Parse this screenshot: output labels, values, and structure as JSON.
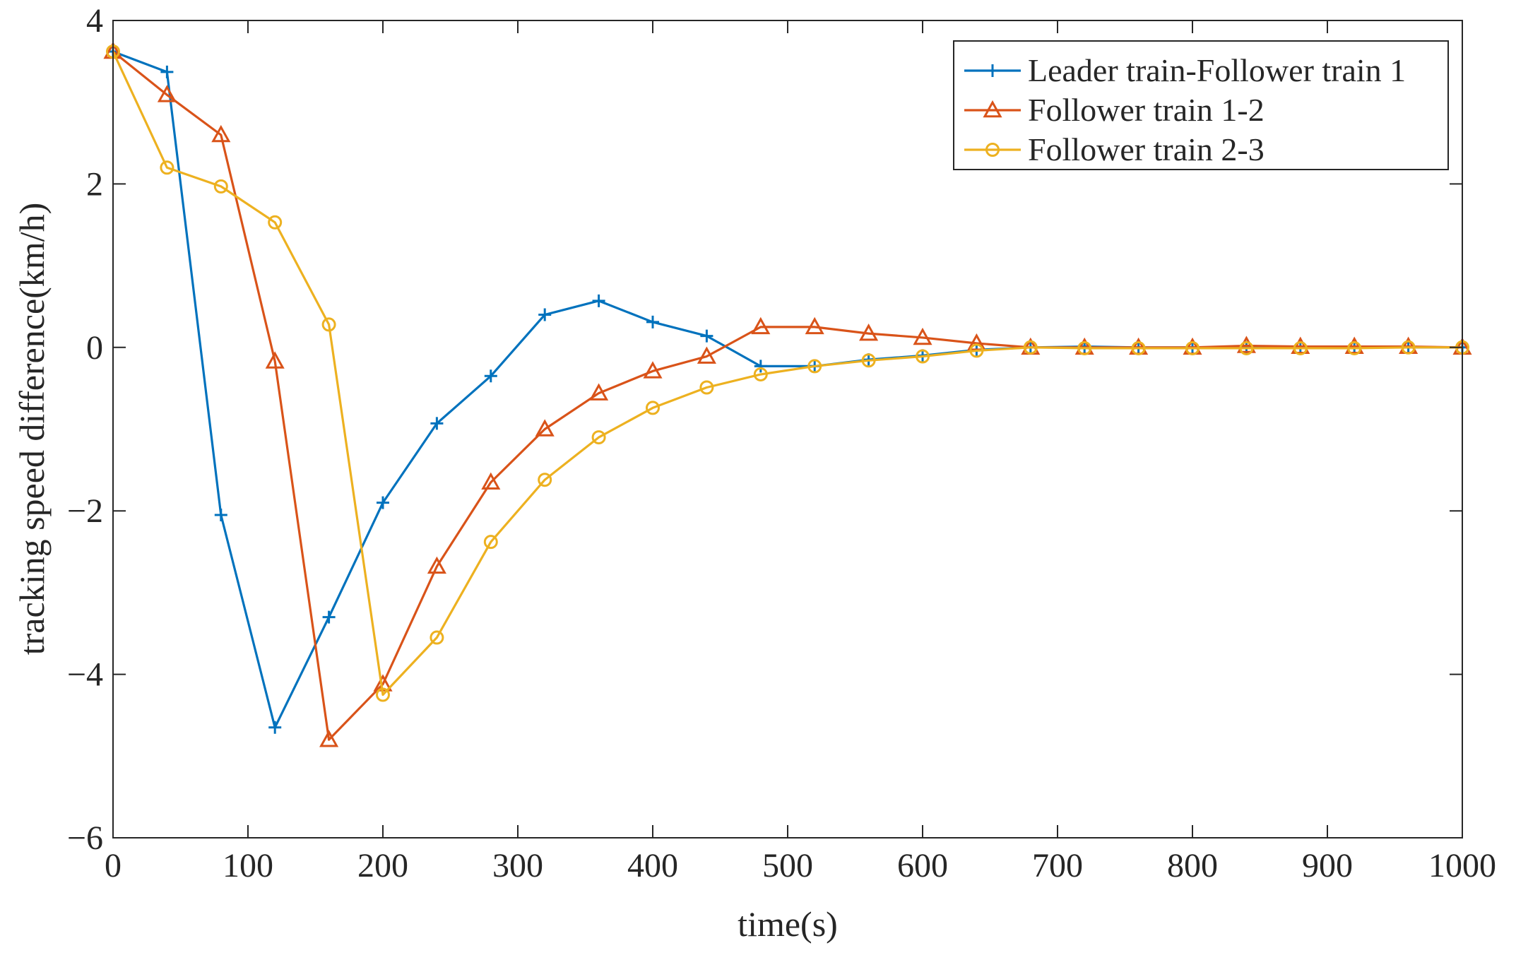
{
  "chart_data": {
    "type": "line",
    "title": "",
    "xlabel": "time(s)",
    "ylabel": "tracking speed difference(km/h)",
    "xlim": [
      0,
      1000
    ],
    "ylim": [
      -6,
      4
    ],
    "xticks": [
      0,
      100,
      200,
      300,
      400,
      500,
      600,
      700,
      800,
      900,
      1000
    ],
    "yticks": [
      -6,
      -4,
      -2,
      0,
      2,
      4
    ],
    "xtick_labels": [
      "0",
      "100",
      "200",
      "300",
      "400",
      "500",
      "600",
      "700",
      "800",
      "900",
      "1000"
    ],
    "ytick_labels": [
      "−6",
      "−4",
      "−2",
      "0",
      "2",
      "4"
    ],
    "grid": false,
    "legend_position": "top-right",
    "x": [
      0,
      40,
      80,
      120,
      160,
      200,
      240,
      280,
      320,
      360,
      400,
      440,
      480,
      520,
      560,
      600,
      640,
      680,
      720,
      760,
      800,
      840,
      880,
      920,
      960,
      1000
    ],
    "series": [
      {
        "name": "Leader train-Follower train 1",
        "color": "#0072BD",
        "marker": "plus",
        "values": [
          3.62,
          3.37,
          -2.05,
          -4.65,
          -3.3,
          -1.9,
          -0.93,
          -0.35,
          0.4,
          0.57,
          0.31,
          0.14,
          -0.23,
          -0.23,
          -0.15,
          -0.1,
          -0.03,
          0.0,
          0.01,
          0.0,
          0.0,
          0.0,
          0.0,
          0.0,
          0.0,
          0.0
        ]
      },
      {
        "name": "Follower train 1-2",
        "color": "#D95319",
        "marker": "triangle",
        "values": [
          3.62,
          3.09,
          2.6,
          -0.17,
          -4.8,
          -4.12,
          -2.68,
          -1.65,
          -1.0,
          -0.56,
          -0.29,
          -0.11,
          0.25,
          0.25,
          0.17,
          0.12,
          0.05,
          0.0,
          0.0,
          0.0,
          0.0,
          0.02,
          0.01,
          0.01,
          0.01,
          0.0
        ]
      },
      {
        "name": "Follower train 2-3",
        "color": "#EDB120",
        "marker": "circle",
        "values": [
          3.62,
          2.2,
          1.97,
          1.53,
          0.28,
          -4.25,
          -3.55,
          -2.38,
          -1.62,
          -1.1,
          -0.74,
          -0.49,
          -0.33,
          -0.23,
          -0.16,
          -0.11,
          -0.04,
          0.0,
          -0.01,
          -0.01,
          -0.01,
          -0.01,
          -0.01,
          -0.01,
          0.0,
          0.0
        ]
      }
    ]
  }
}
